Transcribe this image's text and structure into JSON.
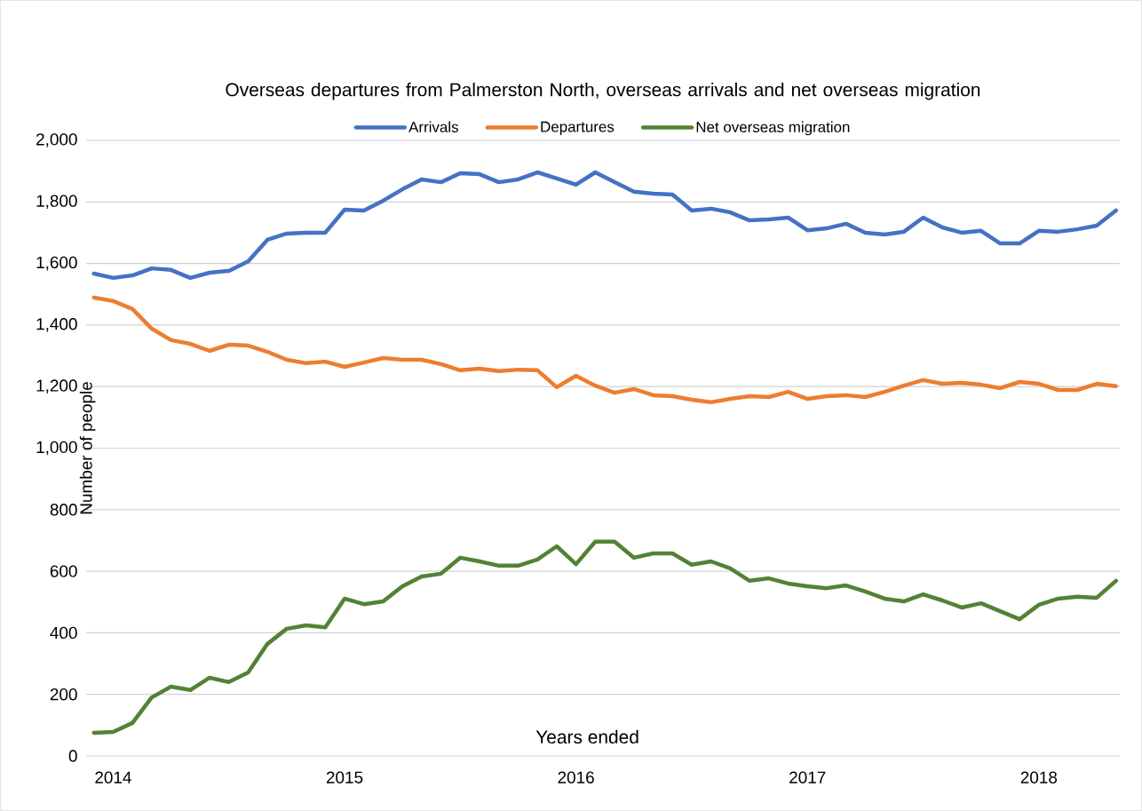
{
  "chart_data": {
    "type": "line",
    "title": "Overseas departures from Palmerston North, overseas arrivals and net overseas migration",
    "xlabel": "Years ended",
    "ylabel": "Number of people",
    "categories": [
      null,
      "2014",
      null,
      null,
      null,
      null,
      null,
      null,
      null,
      null,
      null,
      null,
      null,
      "2015",
      null,
      null,
      null,
      null,
      null,
      null,
      null,
      null,
      null,
      null,
      null,
      "2016",
      null,
      null,
      null,
      null,
      null,
      null,
      null,
      null,
      null,
      null,
      null,
      "2017",
      null,
      null,
      null,
      null,
      null,
      null,
      null,
      null,
      null,
      null,
      null,
      "2018",
      null,
      null,
      null,
      null
    ],
    "series": [
      {
        "name": "Arrivals",
        "color": "#4472c4",
        "values": [
          1567,
          1553,
          1561,
          1584,
          1579,
          1553,
          1570,
          1576,
          1607,
          1677,
          1697,
          1700,
          1700,
          1775,
          1772,
          1804,
          1841,
          1873,
          1864,
          1893,
          1890,
          1864,
          1873,
          1896,
          1876,
          1856,
          1896,
          1864,
          1833,
          1827,
          1824,
          1772,
          1778,
          1766,
          1740,
          1743,
          1749,
          1708,
          1714,
          1729,
          1700,
          1694,
          1703,
          1749,
          1717,
          1700,
          1706,
          1665,
          1665,
          1706,
          1703,
          1711,
          1723,
          1772
        ]
      },
      {
        "name": "Departures",
        "color": "#ed7d31",
        "values": [
          1489,
          1478,
          1452,
          1388,
          1351,
          1339,
          1316,
          1336,
          1333,
          1313,
          1287,
          1276,
          1281,
          1264,
          1278,
          1293,
          1287,
          1287,
          1273,
          1253,
          1258,
          1250,
          1255,
          1253,
          1198,
          1235,
          1203,
          1180,
          1192,
          1172,
          1169,
          1157,
          1149,
          1160,
          1169,
          1166,
          1183,
          1160,
          1169,
          1172,
          1166,
          1183,
          1203,
          1221,
          1209,
          1212,
          1206,
          1195,
          1215,
          1209,
          1189,
          1189,
          1209,
          1201
        ]
      },
      {
        "name": "Net overseas migration",
        "color": "#548235",
        "values": [
          75,
          78,
          107,
          190,
          225,
          214,
          254,
          240,
          271,
          364,
          413,
          424,
          418,
          511,
          493,
          502,
          551,
          583,
          592,
          644,
          632,
          618,
          618,
          638,
          681,
          623,
          696,
          696,
          644,
          658,
          658,
          621,
          632,
          609,
          569,
          577,
          560,
          551,
          545,
          554,
          534,
          511,
          502,
          525,
          505,
          482,
          496,
          470,
          444,
          491,
          511,
          517,
          514,
          569
        ]
      }
    ],
    "ylim": [
      0,
      2000
    ],
    "yticks": [
      0,
      200,
      400,
      600,
      800,
      {
        "value": 1000,
        "label": "1,000"
      },
      {
        "value": 1200,
        "label": "1,200"
      },
      {
        "value": 1400,
        "label": "1,400"
      },
      {
        "value": 1600,
        "label": "1,600"
      },
      {
        "value": 1800,
        "label": "1,800"
      },
      {
        "value": 2000,
        "label": "2,000"
      }
    ],
    "grid": "y",
    "legend": "top",
    "marker": "none",
    "line_style": "solid"
  }
}
